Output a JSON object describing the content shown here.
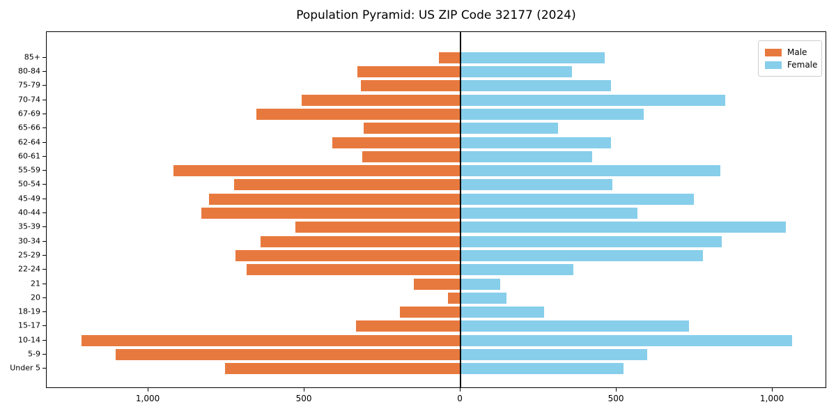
{
  "title": "Population Pyramid: US ZIP Code 32177 (2024)",
  "legend": {
    "male_label": "Male",
    "female_label": "Female",
    "position": "upper right"
  },
  "colors": {
    "male": "#E8793E",
    "female": "#87CEEB",
    "axis": "#000000",
    "legend_border": "#cccccc",
    "background": "#ffffff"
  },
  "chart_data": {
    "type": "bar",
    "subtype": "population-pyramid",
    "title": "Population Pyramid: US ZIP Code 32177 (2024)",
    "orientation": "horizontal",
    "categories_top_to_bottom": [
      "85+",
      "80-84",
      "75-79",
      "70-74",
      "67-69",
      "65-66",
      "62-64",
      "60-61",
      "55-59",
      "50-54",
      "45-49",
      "40-44",
      "35-39",
      "30-34",
      "25-29",
      "22-24",
      "21",
      "20",
      "18-19",
      "15-17",
      "10-14",
      "5-9",
      "Under 5"
    ],
    "series": [
      {
        "name": "Male",
        "side": "left",
        "color": "#E8793E",
        "values": [
          70,
          330,
          320,
          510,
          655,
          310,
          410,
          315,
          920,
          725,
          805,
          830,
          530,
          640,
          720,
          685,
          150,
          40,
          195,
          335,
          1215,
          1105,
          755
        ]
      },
      {
        "name": "Female",
        "side": "right",
        "color": "#87CEEB",
        "values": [
          460,
          355,
          480,
          845,
          585,
          310,
          480,
          420,
          830,
          485,
          745,
          565,
          1040,
          835,
          775,
          360,
          125,
          145,
          265,
          730,
          1060,
          595,
          520
        ]
      }
    ],
    "xlabel": "",
    "ylabel": "",
    "xlim": [
      -1326,
      1174
    ],
    "xticks": [
      {
        "value": -1000,
        "label": "1,000"
      },
      {
        "value": -500,
        "label": "500"
      },
      {
        "value": 0,
        "label": "0"
      },
      {
        "value": 500,
        "label": "500"
      },
      {
        "value": 1000,
        "label": "1,000"
      }
    ],
    "grid": false,
    "zero_line": true,
    "legend_position": "upper right"
  }
}
